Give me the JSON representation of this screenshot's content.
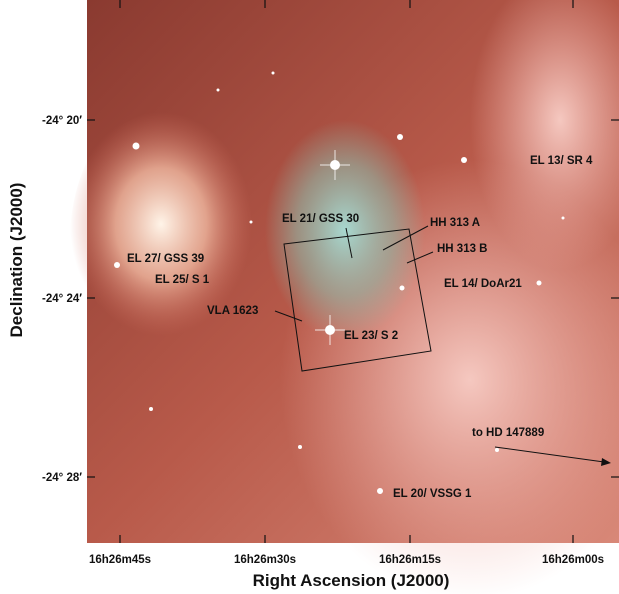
{
  "figure": {
    "x_axis_title": "Right Ascension (J2000)",
    "y_axis_title": "Declination (J2000)",
    "x_tick_labels": [
      "16h26m45s",
      "16h26m30s",
      "16h26m15s",
      "16h26m00s"
    ],
    "y_tick_labels": [
      "-24° 20′",
      "-24° 24′",
      "-24° 28′"
    ],
    "annotations": [
      "EL 13/ SR 4",
      "EL 21/ GSS 30",
      "HH 313 A",
      "HH 313 B",
      "EL 27/ GSS 39",
      "EL 25/ S 1",
      "EL 14/ DoAr21",
      "VLA 1623",
      "EL 23/ S 2",
      "to HD 147889",
      "EL 20/ VSSG 1"
    ]
  }
}
